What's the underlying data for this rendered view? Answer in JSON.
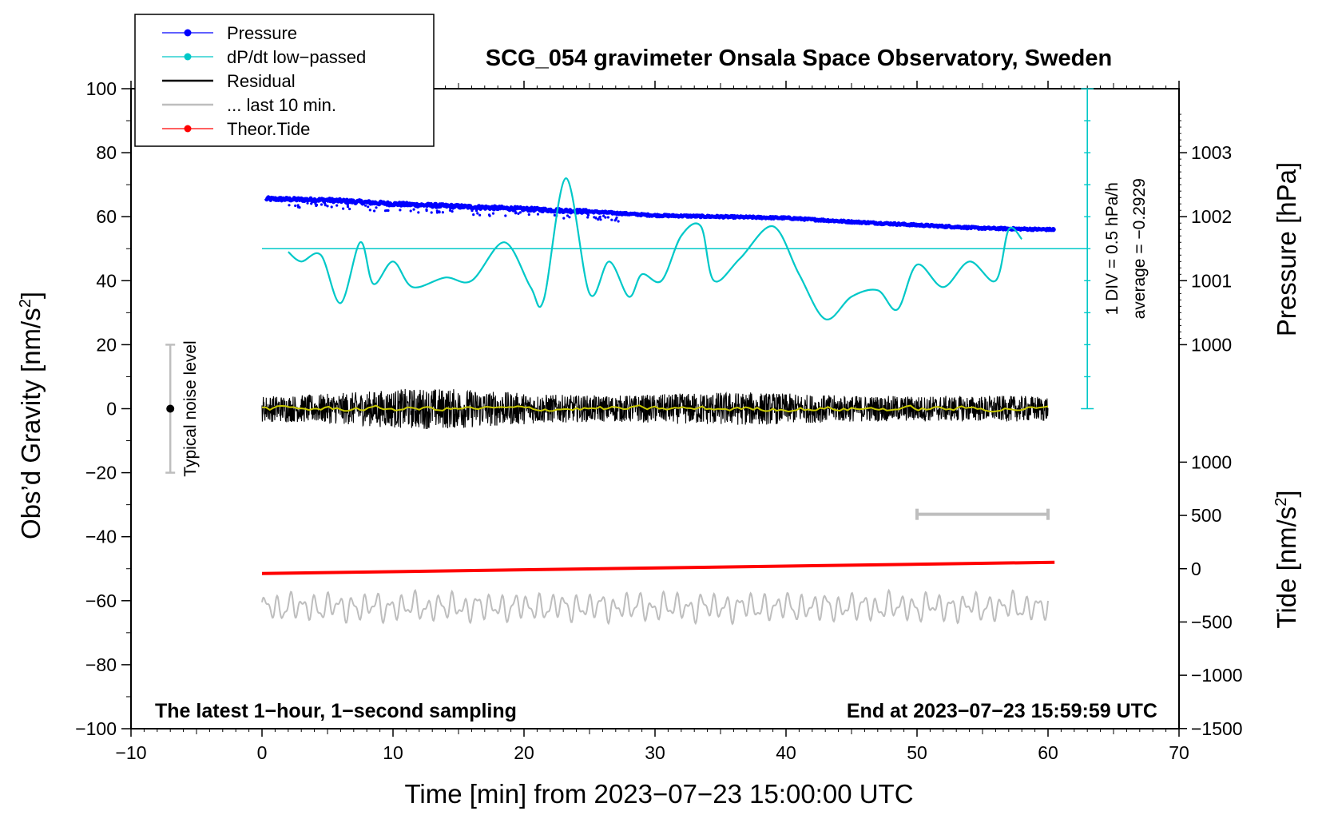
{
  "chart_data": {
    "type": "line",
    "title": "SCG_054 gravimeter Onsala Space Observatory, Sweden",
    "xlabel": "Time [min] from 2023−07−23 15:00:00 UTC",
    "ylabel_left": "Obs’d Gravity [nm/s",
    "ylabel_left_sup": "2",
    "ylabel_left_end": "]",
    "ylabel_right_pressure": "Pressure [hPa]",
    "ylabel_right_tide": "Tide [nm/s",
    "ylabel_right_tide_sup": "2",
    "ylabel_right_tide_end": "]",
    "xlim": [
      -10,
      70
    ],
    "ylim": [
      -100,
      100
    ],
    "x_ticks": [
      "−10",
      "0",
      "10",
      "20",
      "30",
      "40",
      "50",
      "60",
      "70"
    ],
    "x_tick_values": [
      -10,
      0,
      10,
      20,
      30,
      40,
      50,
      60,
      70
    ],
    "y_ticks": [
      "−100",
      "−80",
      "−60",
      "−40",
      "−20",
      "0",
      "20",
      "40",
      "60",
      "80",
      "100"
    ],
    "y_tick_values": [
      -100,
      -80,
      -60,
      -40,
      -20,
      0,
      20,
      40,
      60,
      80,
      100
    ],
    "pressure_ticks": [
      "1000",
      "1001",
      "1002",
      "1003"
    ],
    "pressure_tick_values": [
      1000,
      1001,
      1002,
      1003
    ],
    "pressure_axis_map": {
      "hPa_1000_at_gravity": 20,
      "gravity_per_hPa": 20
    },
    "tide_ticks": [
      "1000",
      "500",
      "0",
      "−500",
      "−1000",
      "−1500"
    ],
    "tide_tick_values": [
      1000,
      500,
      0,
      -500,
      -1000,
      -1500
    ],
    "tide_axis_map": {
      "tide_0_at_gravity": -50,
      "gravity_per_nm": 0.0333
    },
    "legend": [
      {
        "label": "Pressure",
        "color": "#0000ff",
        "style": "line-dot"
      },
      {
        "label": "dP/dt low−passed",
        "color": "#00c8c8",
        "style": "line-dot"
      },
      {
        "label": "Residual",
        "color": "#000000",
        "style": "line"
      },
      {
        "label": "... last 10 min.",
        "color": "#bebebe",
        "style": "line"
      },
      {
        "label": "Theor.Tide",
        "color": "#ff0000",
        "style": "line-dot"
      }
    ],
    "series": [
      {
        "name": "Pressure",
        "unit": "hPa",
        "color": "#0000ff",
        "x": [
          0,
          5,
          10,
          15,
          20,
          25,
          30,
          35,
          40,
          45,
          50,
          55,
          60
        ],
        "values": [
          1002.28,
          1002.26,
          1002.2,
          1002.16,
          1002.12,
          1002.08,
          1002.02,
          1002.0,
          1001.98,
          1001.92,
          1001.87,
          1001.82,
          1001.8
        ]
      },
      {
        "name": "dP/dt low−passed",
        "unit": "gravity-scale",
        "color": "#00c8c8",
        "x": [
          2,
          3,
          4.5,
          6,
          7.5,
          8.5,
          10,
          11.5,
          14,
          16,
          18.5,
          20.5,
          21.5,
          23.2,
          25,
          26.5,
          28,
          29,
          30.5,
          32,
          33.5,
          34.5,
          36.5,
          39,
          41,
          43,
          45,
          47,
          48.5,
          50,
          52,
          54,
          56,
          57,
          58
        ],
        "values": [
          49,
          46,
          48,
          33,
          52,
          39,
          46,
          38,
          41,
          40,
          52,
          38,
          34,
          72,
          36,
          46,
          35,
          42,
          40,
          54,
          57,
          40,
          47,
          57,
          42,
          28,
          35,
          37,
          31,
          45,
          38,
          46,
          40,
          56,
          53
        ]
      },
      {
        "name": "Residual",
        "unit": "nm/s2",
        "color": "#000000",
        "x_range": [
          0,
          60
        ],
        "center": 0,
        "amplitude": 4
      },
      {
        "name": "Residual smoothed",
        "unit": "nm/s2",
        "color": "#c8c800",
        "x_range": [
          0,
          60
        ],
        "center": 0
      },
      {
        "name": "... last 10 min.",
        "unit": "nm/s2",
        "color": "#bebebe",
        "x_range": [
          0,
          60
        ],
        "center": -62
      },
      {
        "name": "Theor.Tide",
        "unit": "nm/s2",
        "color": "#ff0000",
        "x": [
          0,
          60.5
        ],
        "values": [
          -51.5,
          -48
        ]
      }
    ],
    "dpdt_reference": {
      "level": 50,
      "x_range": [
        0,
        63
      ]
    },
    "dpdt_scale_text": "1 DIV = 0.5 hPa/h",
    "dpdt_average_text": "average = −0.2929",
    "noise_label": "Typical noise level",
    "noise_bar": {
      "x": -7,
      "center": 0,
      "half_range": 20
    },
    "window_bar": {
      "x_range": [
        50,
        60
      ],
      "y": -33
    },
    "note_left": "The latest 1−hour, 1−second sampling",
    "note_right": "End at 2023−07−23 15:59:59 UTC"
  }
}
